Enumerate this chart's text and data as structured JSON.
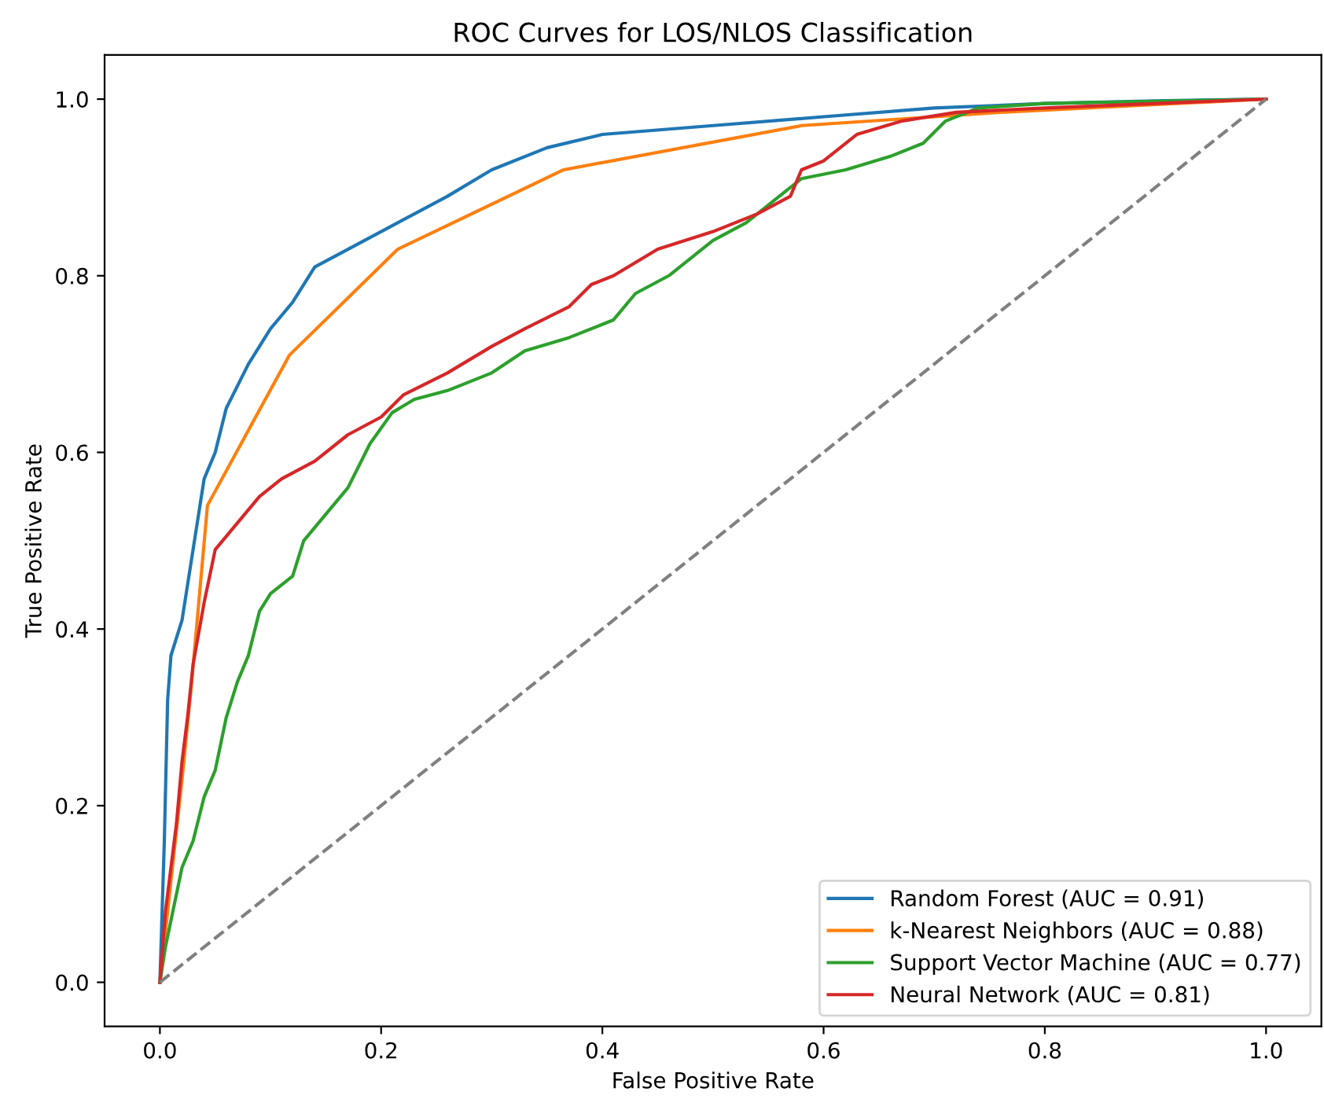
{
  "chart_data": {
    "type": "line",
    "title": "ROC Curves for LOS/NLOS Classification",
    "xlabel": "False Positive Rate",
    "ylabel": "True Positive Rate",
    "xlim": [
      -0.05,
      1.05
    ],
    "ylim": [
      -0.05,
      1.05
    ],
    "xticks": [
      {
        "value": 0,
        "label": "0.0"
      },
      {
        "value": 0.2,
        "label": "0.2"
      },
      {
        "value": 0.4,
        "label": "0.4"
      },
      {
        "value": 0.6,
        "label": "0.6"
      },
      {
        "value": 0.8,
        "label": "0.8"
      },
      {
        "value": 1,
        "label": "1.0"
      }
    ],
    "yticks": [
      {
        "value": 0,
        "label": "0.0"
      },
      {
        "value": 0.2,
        "label": "0.2"
      },
      {
        "value": 0.4,
        "label": "0.4"
      },
      {
        "value": 0.6,
        "label": "0.6"
      },
      {
        "value": 0.8,
        "label": "0.8"
      },
      {
        "value": 1,
        "label": "1.0"
      }
    ],
    "legend": "lower right",
    "grid": false,
    "line_style": "solid",
    "series": [
      {
        "name": "Random Forest (AUC = 0.91)",
        "color": "#1f77b4",
        "x": [
          0,
          0.004,
          0.007,
          0.01,
          0.02,
          0.03,
          0.04,
          0.05,
          0.06,
          0.08,
          0.1,
          0.12,
          0.14,
          0.17,
          0.2,
          0.23,
          0.26,
          0.3,
          0.35,
          0.4,
          0.5,
          0.6,
          0.7,
          0.8,
          0.9,
          1
        ],
        "values": [
          0,
          0.16,
          0.32,
          0.37,
          0.41,
          0.49,
          0.57,
          0.6,
          0.65,
          0.7,
          0.74,
          0.77,
          0.81,
          0.83,
          0.85,
          0.87,
          0.89,
          0.92,
          0.945,
          0.96,
          0.97,
          0.98,
          0.99,
          0.995,
          0.998,
          1
        ]
      },
      {
        "name": "k-Nearest Neighbors (AUC = 0.88)",
        "color": "#ff7f0e",
        "x": [
          0,
          0.02,
          0.028,
          0.043,
          0.117,
          0.215,
          0.365,
          0.58,
          0.76,
          1
        ],
        "values": [
          0,
          0.23,
          0.33,
          0.54,
          0.71,
          0.83,
          0.92,
          0.97,
          0.985,
          1
        ]
      },
      {
        "name": "Support Vector Machine (AUC = 0.77)",
        "color": "#2ca02c",
        "x": [
          0,
          0.005,
          0.01,
          0.02,
          0.03,
          0.04,
          0.05,
          0.06,
          0.07,
          0.08,
          0.09,
          0.1,
          0.12,
          0.13,
          0.15,
          0.17,
          0.19,
          0.21,
          0.23,
          0.26,
          0.3,
          0.33,
          0.37,
          0.41,
          0.43,
          0.46,
          0.5,
          0.53,
          0.56,
          0.58,
          0.62,
          0.66,
          0.69,
          0.71,
          0.74,
          0.8,
          1
        ],
        "values": [
          0,
          0.04,
          0.07,
          0.13,
          0.16,
          0.21,
          0.24,
          0.3,
          0.34,
          0.37,
          0.42,
          0.44,
          0.46,
          0.5,
          0.53,
          0.56,
          0.61,
          0.645,
          0.66,
          0.67,
          0.69,
          0.715,
          0.73,
          0.75,
          0.78,
          0.8,
          0.84,
          0.86,
          0.89,
          0.91,
          0.92,
          0.935,
          0.95,
          0.975,
          0.99,
          0.995,
          1
        ]
      },
      {
        "name": "Neural Network (AUC = 0.81)",
        "color": "#d62728",
        "x": [
          0,
          0.005,
          0.015,
          0.02,
          0.025,
          0.03,
          0.04,
          0.05,
          0.07,
          0.09,
          0.11,
          0.14,
          0.17,
          0.2,
          0.22,
          0.26,
          0.3,
          0.33,
          0.37,
          0.39,
          0.41,
          0.45,
          0.5,
          0.54,
          0.57,
          0.58,
          0.6,
          0.63,
          0.67,
          0.72,
          0.8,
          1
        ],
        "values": [
          0,
          0.08,
          0.18,
          0.25,
          0.3,
          0.36,
          0.43,
          0.49,
          0.52,
          0.55,
          0.57,
          0.59,
          0.62,
          0.64,
          0.665,
          0.69,
          0.72,
          0.74,
          0.765,
          0.79,
          0.8,
          0.83,
          0.85,
          0.87,
          0.89,
          0.92,
          0.93,
          0.96,
          0.975,
          0.985,
          0.99,
          1
        ]
      },
      {
        "color": "#808080",
        "line_style": "dashed",
        "x": [
          0,
          1
        ],
        "values": [
          0,
          1
        ]
      }
    ]
  }
}
